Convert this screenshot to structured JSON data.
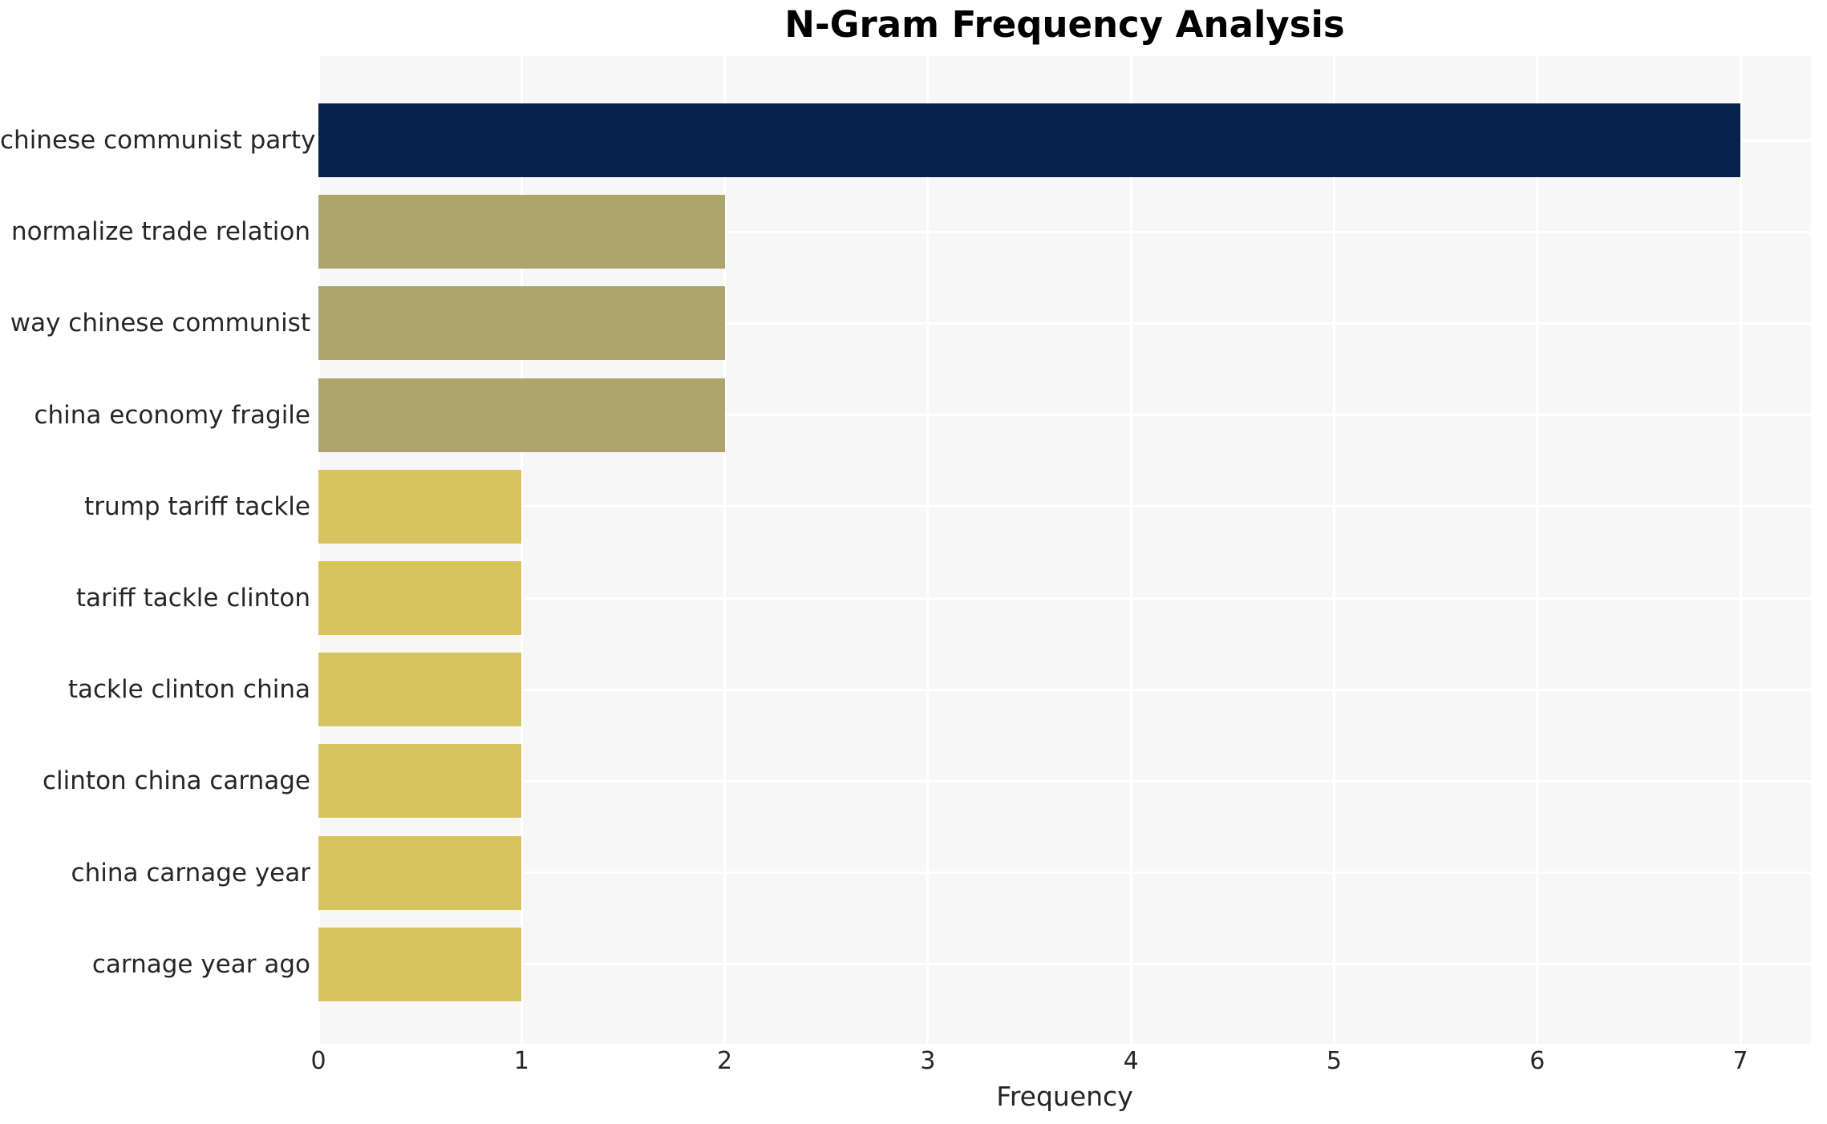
{
  "title": "N-Gram Frequency Analysis",
  "xlabel": "Frequency",
  "colors": {
    "figure_background": "#ffffff",
    "plot_background": "#f7f7f7",
    "grid": "#ffffff",
    "navy_bar": "#04224c",
    "khaki_bar": "#aea46e",
    "yellow_bar": "#d7c45e",
    "text": "#262626",
    "title_text": "#000000"
  },
  "chart_data": {
    "type": "bar",
    "orientation": "horizontal",
    "title": "N-Gram Frequency Analysis",
    "xlabel": "Frequency",
    "ylabel": "",
    "categories": [
      "chinese communist party",
      "normalize trade relation",
      "way chinese communist",
      "china economy fragile",
      "trump tariff tackle",
      "tariff tackle clinton",
      "tackle clinton china",
      "clinton china carnage",
      "china carnage year",
      "carnage year ago"
    ],
    "values": [
      7,
      2,
      2,
      2,
      1,
      1,
      1,
      1,
      1,
      1
    ],
    "bar_colors": [
      "#04224c",
      "#aea46e",
      "#aea46e",
      "#aea46e",
      "#d7c45e",
      "#d7c45e",
      "#d7c45e",
      "#d7c45e",
      "#d7c45e",
      "#d7c45e"
    ],
    "x_ticks": [
      "0",
      "1",
      "2",
      "3",
      "4",
      "5",
      "6",
      "7"
    ],
    "xlim": [
      0,
      7.35
    ],
    "grid": true,
    "legend": false,
    "bar_value_labels": false
  }
}
